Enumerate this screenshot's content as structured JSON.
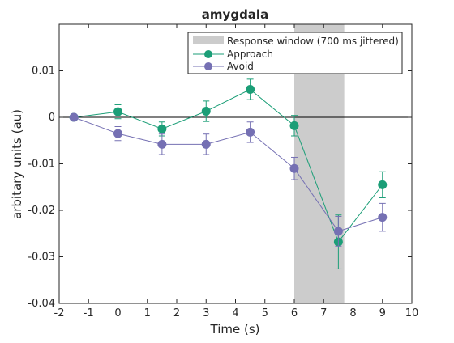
{
  "chart_data": {
    "type": "line",
    "title": "amygdala",
    "xlabel": "Time (s)",
    "ylabel": "arbitary units (au)",
    "xlim": [
      -2,
      10
    ],
    "ylim": [
      -0.04,
      0.02
    ],
    "x_ticks": [
      -2,
      -1,
      0,
      1,
      2,
      3,
      4,
      5,
      6,
      7,
      8,
      9,
      10
    ],
    "x_tick_labels": [
      "-2",
      "-1",
      "0",
      "1",
      "2",
      "3",
      "4",
      "5",
      "6",
      "7",
      "8",
      "9",
      "10"
    ],
    "y_ticks": [
      -0.04,
      -0.03,
      -0.02,
      -0.01,
      0,
      0.01
    ],
    "y_tick_labels": [
      "-0.04",
      "-0.03",
      "-0.02",
      "-0.01",
      "0",
      "0.01"
    ],
    "grid": false,
    "legend_position": "top-right",
    "shaded_region": {
      "label": "Response window (700 ms jittered)",
      "x_start": 6.0,
      "x_end": 7.7,
      "color": "#cccccc"
    },
    "reference_lines": {
      "x": 0,
      "y": 0,
      "color": "#000000"
    },
    "x": [
      -1.5,
      0,
      1.5,
      3,
      4.5,
      6,
      7.5,
      9
    ],
    "series": [
      {
        "name": "Approach",
        "color": "#1b9e77",
        "values": [
          0,
          0.0012,
          -0.0025,
          0.0013,
          0.006,
          -0.0018,
          -0.0268,
          -0.0145
        ],
        "errors": [
          0,
          0.0015,
          0.0015,
          0.0022,
          0.0022,
          0.0022,
          0.0058,
          0.0028
        ]
      },
      {
        "name": "Avoid",
        "color": "#7570b3",
        "values": [
          0,
          -0.0035,
          -0.0058,
          -0.0058,
          -0.0032,
          -0.011,
          -0.0245,
          -0.0215
        ],
        "errors": [
          0,
          0.0015,
          0.0022,
          0.0022,
          0.0022,
          0.0024,
          0.0032,
          0.003
        ]
      }
    ]
  }
}
